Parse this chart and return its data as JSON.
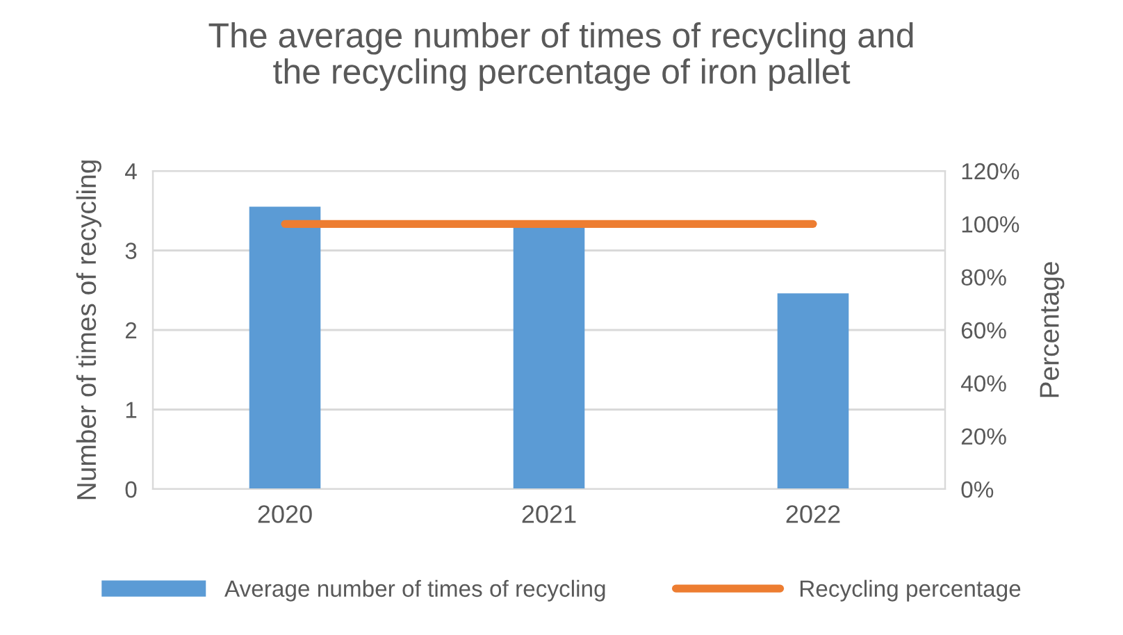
{
  "chart_data": {
    "type": "bar",
    "title": "The average number of times of recycling and\nthe recycling percentage of iron pallet",
    "ylabel": "Number of times of recycling",
    "y2label": "Percentage",
    "categories": [
      "2020",
      "2021",
      "2022"
    ],
    "series": [
      {
        "name": "Average number of times of recycling",
        "color": "#5b9bd5",
        "values": [
          3.55,
          3.3,
          2.46
        ]
      },
      {
        "name": "Recycling percentage",
        "type": "line",
        "axis": "y2",
        "color": "#ed7d31",
        "values": [
          100,
          100,
          100
        ],
        "marker": "none"
      }
    ],
    "ylim": [
      0,
      4
    ],
    "yticks": [
      0,
      1,
      2,
      3,
      4
    ],
    "y2lim": [
      0,
      120
    ],
    "y2ticks": [
      {
        "value": 0,
        "label": "0%"
      },
      {
        "value": 20,
        "label": "20%"
      },
      {
        "value": 40,
        "label": "40%"
      },
      {
        "value": 60,
        "label": "60%"
      },
      {
        "value": 80,
        "label": "80%"
      },
      {
        "value": 100,
        "label": "100%"
      },
      {
        "value": 120,
        "label": "120%"
      }
    ],
    "grid": "y",
    "legend": "bottom"
  }
}
